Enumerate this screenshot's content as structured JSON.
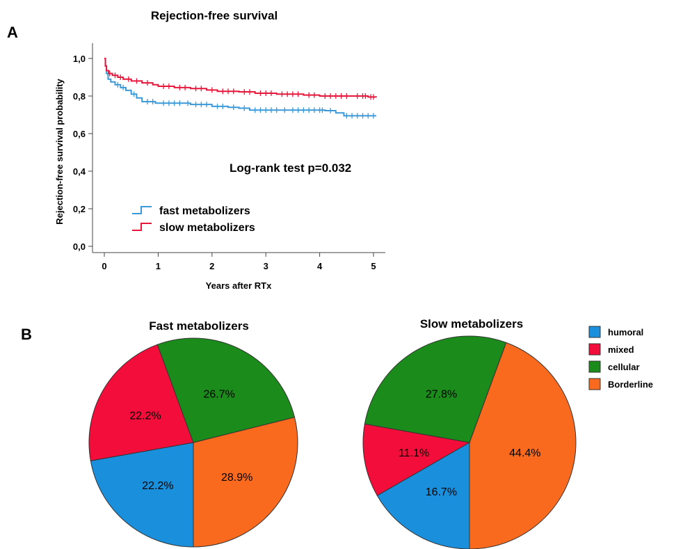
{
  "panels": {
    "a_letter": "A",
    "b_letter": "B"
  },
  "chart_data": [
    {
      "type": "line",
      "title": "Rejection-free survival",
      "xlabel": "Years after RTx",
      "ylabel": "Rejection-free survival probability",
      "xlim": [
        0,
        5
      ],
      "ylim": [
        0,
        1
      ],
      "x_ticks": [
        "0",
        "1",
        "2",
        "3",
        "4",
        "5"
      ],
      "y_ticks": [
        "0,0",
        "0,2",
        "0,4",
        "0,6",
        "0,8",
        "1,0"
      ],
      "grid": false,
      "legend_position": "bottom-left",
      "annotation": "Log-rank test p=0.032",
      "series": [
        {
          "name": "fast metabolizers",
          "color": "#3a9ad9",
          "step": true,
          "points": [
            [
              0,
              1.0
            ],
            [
              0.02,
              0.96
            ],
            [
              0.04,
              0.92
            ],
            [
              0.07,
              0.89
            ],
            [
              0.12,
              0.875
            ],
            [
              0.2,
              0.86
            ],
            [
              0.3,
              0.845
            ],
            [
              0.4,
              0.83
            ],
            [
              0.5,
              0.81
            ],
            [
              0.6,
              0.79
            ],
            [
              0.7,
              0.77
            ],
            [
              0.95,
              0.762
            ],
            [
              1.5,
              0.762
            ],
            [
              1.6,
              0.755
            ],
            [
              2.0,
              0.745
            ],
            [
              2.3,
              0.74
            ],
            [
              2.5,
              0.735
            ],
            [
              2.7,
              0.725
            ],
            [
              3.3,
              0.725
            ],
            [
              4.1,
              0.722
            ],
            [
              4.3,
              0.71
            ],
            [
              4.45,
              0.695
            ],
            [
              5.05,
              0.695
            ]
          ],
          "censor_x": [
            0.25,
            0.35,
            0.55,
            0.8,
            0.9,
            1.1,
            1.2,
            1.3,
            1.4,
            1.55,
            1.7,
            1.8,
            1.9,
            2.1,
            2.2,
            2.4,
            2.6,
            2.8,
            2.9,
            3.0,
            3.1,
            3.2,
            3.35,
            3.5,
            3.6,
            3.7,
            3.8,
            3.9,
            4.0,
            4.05,
            4.2,
            4.5,
            4.6,
            4.7,
            4.8,
            4.9,
            5.0
          ]
        },
        {
          "name": "slow metabolizers",
          "color": "#e8173a",
          "step": true,
          "points": [
            [
              0,
              1.0
            ],
            [
              0.02,
              0.96
            ],
            [
              0.04,
              0.935
            ],
            [
              0.08,
              0.92
            ],
            [
              0.15,
              0.91
            ],
            [
              0.25,
              0.9
            ],
            [
              0.35,
              0.89
            ],
            [
              0.5,
              0.88
            ],
            [
              0.7,
              0.87
            ],
            [
              0.9,
              0.86
            ],
            [
              1.0,
              0.852
            ],
            [
              1.3,
              0.845
            ],
            [
              1.6,
              0.84
            ],
            [
              1.9,
              0.832
            ],
            [
              2.1,
              0.825
            ],
            [
              2.5,
              0.822
            ],
            [
              2.8,
              0.815
            ],
            [
              3.2,
              0.81
            ],
            [
              3.7,
              0.805
            ],
            [
              4.0,
              0.8
            ],
            [
              4.6,
              0.8
            ],
            [
              4.9,
              0.795
            ],
            [
              5.05,
              0.792
            ]
          ],
          "censor_x": [
            0.1,
            0.2,
            0.3,
            0.45,
            0.6,
            0.8,
            1.1,
            1.2,
            1.4,
            1.5,
            1.7,
            1.8,
            2.0,
            2.2,
            2.3,
            2.4,
            2.6,
            2.7,
            2.9,
            3.0,
            3.1,
            3.3,
            3.4,
            3.5,
            3.6,
            3.8,
            3.9,
            4.1,
            4.2,
            4.3,
            4.4,
            4.5,
            4.7,
            4.8,
            4.85,
            4.95,
            5.0
          ]
        }
      ]
    },
    {
      "type": "pie",
      "title": "Fast metabolizers",
      "categories": [
        "humoral",
        "mixed",
        "cellular",
        "Borderline"
      ],
      "values": [
        22.2,
        22.2,
        26.7,
        28.9
      ],
      "labels": [
        "22.2%",
        "22.2%",
        "26.7%",
        "28.9%"
      ],
      "colors": [
        "#1a8fdc",
        "#f20d3a",
        "#1b8c1b",
        "#fa6a1e"
      ]
    },
    {
      "type": "pie",
      "title": "Slow metabolizers",
      "categories": [
        "humoral",
        "mixed",
        "cellular",
        "Borderline"
      ],
      "values": [
        16.7,
        11.1,
        27.8,
        44.4
      ],
      "labels": [
        "16.7%",
        "11.1%",
        "27.8%",
        "44.4%"
      ],
      "colors": [
        "#1a8fdc",
        "#f20d3a",
        "#1b8c1b",
        "#fa6a1e"
      ]
    }
  ],
  "pie_legend": {
    "items": [
      {
        "label": "humoral",
        "color": "#1a8fdc"
      },
      {
        "label": "mixed",
        "color": "#f20d3a"
      },
      {
        "label": "cellular",
        "color": "#1b8c1b"
      },
      {
        "label": "Borderline",
        "color": "#fa6a1e"
      }
    ]
  }
}
